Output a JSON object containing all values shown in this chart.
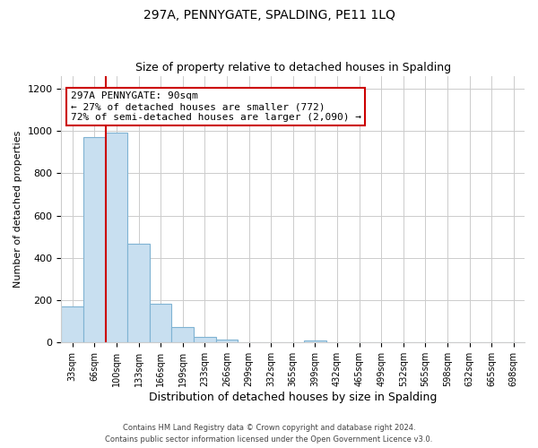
{
  "title": "297A, PENNYGATE, SPALDING, PE11 1LQ",
  "subtitle": "Size of property relative to detached houses in Spalding",
  "xlabel": "Distribution of detached houses by size in Spalding",
  "ylabel": "Number of detached properties",
  "bar_labels": [
    "33sqm",
    "66sqm",
    "100sqm",
    "133sqm",
    "166sqm",
    "199sqm",
    "233sqm",
    "266sqm",
    "299sqm",
    "332sqm",
    "365sqm",
    "399sqm",
    "432sqm",
    "465sqm",
    "499sqm",
    "532sqm",
    "565sqm",
    "598sqm",
    "632sqm",
    "665sqm",
    "698sqm"
  ],
  "bar_values": [
    170,
    970,
    990,
    465,
    185,
    75,
    25,
    15,
    0,
    0,
    0,
    10,
    0,
    0,
    0,
    0,
    0,
    0,
    0,
    0,
    0
  ],
  "bar_color": "#c8dff0",
  "bar_edge_color": "#7fb3d3",
  "red_line_index": 2,
  "annotation_text": "297A PENNYGATE: 90sqm\n← 27% of detached houses are smaller (772)\n72% of semi-detached houses are larger (2,090) →",
  "annotation_box_color": "#ffffff",
  "annotation_box_edge": "#cc0000",
  "ylim": [
    0,
    1260
  ],
  "yticks": [
    0,
    200,
    400,
    600,
    800,
    1000,
    1200
  ],
  "footnote1": "Contains HM Land Registry data © Crown copyright and database right 2024.",
  "footnote2": "Contains public sector information licensed under the Open Government Licence v3.0.",
  "background_color": "#ffffff",
  "grid_color": "#cccccc"
}
